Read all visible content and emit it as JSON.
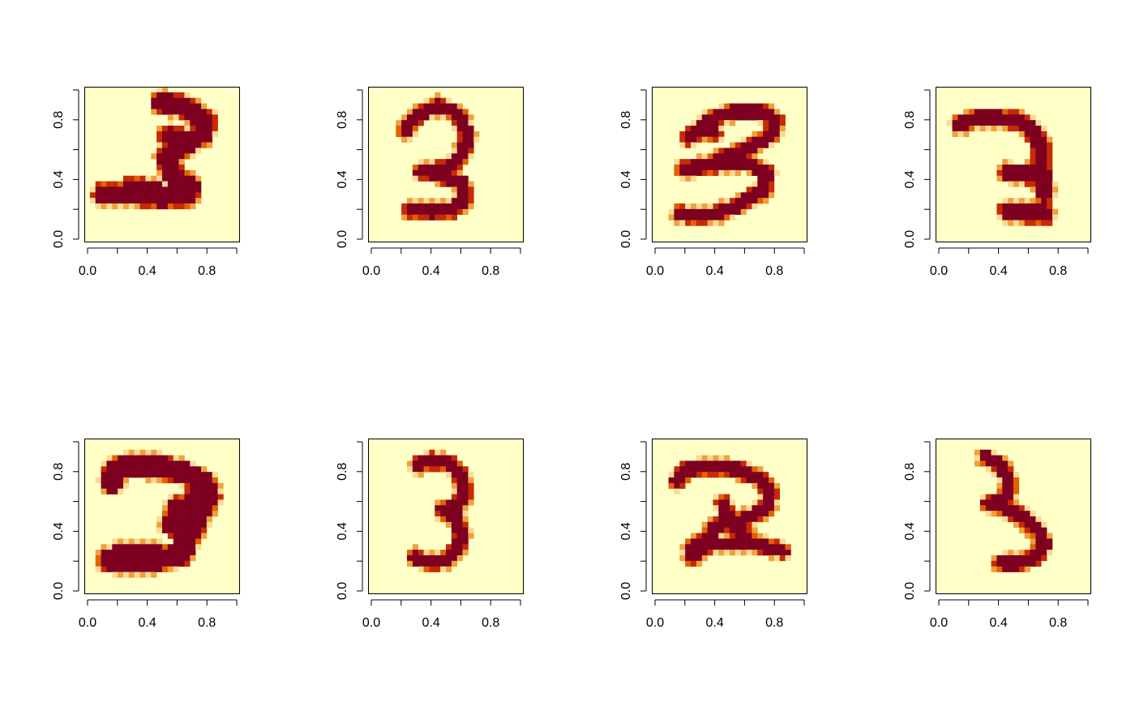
{
  "chart_data": {
    "type": "heatmap",
    "layout": {
      "rows": 2,
      "cols": 4
    },
    "colors": {
      "palette": [
        "#FFFFC8",
        "#FBDA94",
        "#F0A03C",
        "#E56000",
        "#C62A06",
        "#7E0021"
      ],
      "background": "#FFFFC8"
    },
    "axes": {
      "xlim": [
        0,
        1
      ],
      "ylim": [
        0,
        1
      ],
      "x_ticks": [
        0.0,
        0.2,
        0.4,
        0.6,
        0.8,
        1.0
      ],
      "y_ticks": [
        0.0,
        0.2,
        0.4,
        0.6,
        0.8,
        1.0
      ],
      "x_tick_labels": [
        "0.0",
        "0.4",
        "0.8"
      ],
      "x_label_positions": [
        0.0,
        0.4,
        0.8
      ],
      "y_tick_labels": [
        "0.0",
        "0.4",
        "0.8"
      ],
      "y_label_positions": [
        0.0,
        0.4,
        0.8
      ]
    },
    "panels": [
      {
        "digit": "3",
        "strokes": [
          [
            [
              0.5,
              0.9
            ],
            [
              0.62,
              0.88
            ],
            [
              0.78,
              0.78
            ],
            [
              0.76,
              0.7
            ],
            [
              0.65,
              0.62
            ],
            [
              0.53,
              0.55
            ],
            [
              0.56,
              0.44
            ],
            [
              0.68,
              0.36
            ],
            [
              0.66,
              0.3
            ],
            [
              0.5,
              0.29
            ],
            [
              0.3,
              0.31
            ],
            [
              0.12,
              0.31
            ]
          ],
          [
            [
              0.55,
              0.68
            ],
            [
              0.68,
              0.64
            ]
          ],
          [
            [
              0.3,
              0.35
            ],
            [
              0.45,
              0.33
            ]
          ]
        ],
        "width": 0.06
      },
      {
        "digit": "3",
        "strokes": [
          [
            [
              0.24,
              0.72
            ],
            [
              0.32,
              0.82
            ],
            [
              0.45,
              0.88
            ],
            [
              0.58,
              0.82
            ],
            [
              0.64,
              0.68
            ],
            [
              0.6,
              0.56
            ],
            [
              0.52,
              0.48
            ],
            [
              0.4,
              0.46
            ],
            [
              0.34,
              0.46
            ],
            [
              0.46,
              0.44
            ],
            [
              0.6,
              0.38
            ],
            [
              0.62,
              0.28
            ],
            [
              0.54,
              0.21
            ],
            [
              0.4,
              0.2
            ],
            [
              0.27,
              0.21
            ]
          ]
        ],
        "width": 0.04
      },
      {
        "digit": "3",
        "strokes": [
          [
            [
              0.24,
              0.67
            ],
            [
              0.36,
              0.78
            ],
            [
              0.52,
              0.84
            ],
            [
              0.7,
              0.84
            ],
            [
              0.8,
              0.78
            ],
            [
              0.76,
              0.68
            ],
            [
              0.6,
              0.6
            ],
            [
              0.46,
              0.54
            ],
            [
              0.36,
              0.5
            ],
            [
              0.26,
              0.48
            ],
            [
              0.2,
              0.47
            ],
            [
              0.6,
              0.52
            ],
            [
              0.74,
              0.45
            ],
            [
              0.72,
              0.34
            ],
            [
              0.56,
              0.24
            ],
            [
              0.4,
              0.18
            ],
            [
              0.24,
              0.17
            ],
            [
              0.18,
              0.19
            ]
          ],
          [
            [
              0.32,
              0.74
            ],
            [
              0.4,
              0.7
            ]
          ]
        ],
        "width": 0.04
      },
      {
        "digit": "3",
        "strokes": [
          [
            [
              0.16,
              0.76
            ],
            [
              0.26,
              0.8
            ],
            [
              0.4,
              0.8
            ],
            [
              0.54,
              0.78
            ],
            [
              0.62,
              0.72
            ],
            [
              0.68,
              0.62
            ],
            [
              0.68,
              0.5
            ],
            [
              0.62,
              0.45
            ],
            [
              0.54,
              0.44
            ],
            [
              0.46,
              0.45
            ],
            [
              0.54,
              0.44
            ],
            [
              0.66,
              0.42
            ],
            [
              0.7,
              0.36
            ]
          ],
          [
            [
              0.68,
              0.56
            ],
            [
              0.7,
              0.3
            ]
          ],
          [
            [
              0.46,
              0.19
            ],
            [
              0.62,
              0.18
            ],
            [
              0.7,
              0.17
            ]
          ],
          [
            [
              0.46,
              0.21
            ],
            [
              0.7,
              0.2
            ]
          ]
        ],
        "width": 0.045
      },
      {
        "digit": "3",
        "strokes": [
          [
            [
              0.18,
              0.72
            ],
            [
              0.2,
              0.8
            ],
            [
              0.3,
              0.83
            ],
            [
              0.48,
              0.82
            ],
            [
              0.64,
              0.78
            ],
            [
              0.76,
              0.72
            ],
            [
              0.8,
              0.64
            ],
            [
              0.76,
              0.56
            ],
            [
              0.66,
              0.5
            ],
            [
              0.56,
              0.46
            ],
            [
              0.62,
              0.42
            ],
            [
              0.66,
              0.34
            ],
            [
              0.62,
              0.26
            ],
            [
              0.48,
              0.22
            ],
            [
              0.32,
              0.21
            ],
            [
              0.16,
              0.22
            ]
          ],
          [
            [
              0.6,
              0.56
            ],
            [
              0.68,
              0.4
            ]
          ],
          [
            [
              0.7,
              0.6
            ],
            [
              0.72,
              0.46
            ]
          ],
          [
            [
              0.24,
              0.26
            ],
            [
              0.44,
              0.26
            ]
          ]
        ],
        "width": 0.065
      },
      {
        "digit": "3",
        "strokes": [
          [
            [
              0.32,
              0.83
            ],
            [
              0.42,
              0.86
            ],
            [
              0.52,
              0.84
            ],
            [
              0.6,
              0.76
            ],
            [
              0.62,
              0.64
            ],
            [
              0.56,
              0.56
            ],
            [
              0.48,
              0.54
            ],
            [
              0.56,
              0.5
            ],
            [
              0.6,
              0.4
            ],
            [
              0.58,
              0.3
            ],
            [
              0.5,
              0.22
            ],
            [
              0.4,
              0.2
            ],
            [
              0.3,
              0.24
            ]
          ]
        ],
        "width": 0.04
      },
      {
        "digit": "2",
        "strokes": [
          [
            [
              0.16,
              0.72
            ],
            [
              0.22,
              0.8
            ],
            [
              0.38,
              0.82
            ],
            [
              0.56,
              0.8
            ],
            [
              0.7,
              0.74
            ],
            [
              0.76,
              0.66
            ],
            [
              0.74,
              0.56
            ],
            [
              0.64,
              0.5
            ],
            [
              0.5,
              0.46
            ],
            [
              0.42,
              0.44
            ],
            [
              0.34,
              0.34
            ],
            [
              0.25,
              0.29
            ],
            [
              0.26,
              0.24
            ],
            [
              0.36,
              0.32
            ],
            [
              0.52,
              0.32
            ],
            [
              0.68,
              0.32
            ],
            [
              0.84,
              0.28
            ]
          ],
          [
            [
              0.46,
              0.58
            ],
            [
              0.52,
              0.44
            ],
            [
              0.64,
              0.34
            ]
          ]
        ],
        "width": 0.04
      },
      {
        "digit": "3",
        "strokes": [
          [
            [
              0.32,
              0.88
            ],
            [
              0.4,
              0.84
            ],
            [
              0.46,
              0.76
            ],
            [
              0.48,
              0.68
            ],
            [
              0.42,
              0.6
            ],
            [
              0.34,
              0.58
            ],
            [
              0.44,
              0.56
            ],
            [
              0.56,
              0.5
            ],
            [
              0.66,
              0.4
            ],
            [
              0.7,
              0.32
            ],
            [
              0.64,
              0.24
            ],
            [
              0.52,
              0.2
            ],
            [
              0.42,
              0.2
            ]
          ]
        ],
        "width": 0.04
      }
    ]
  }
}
